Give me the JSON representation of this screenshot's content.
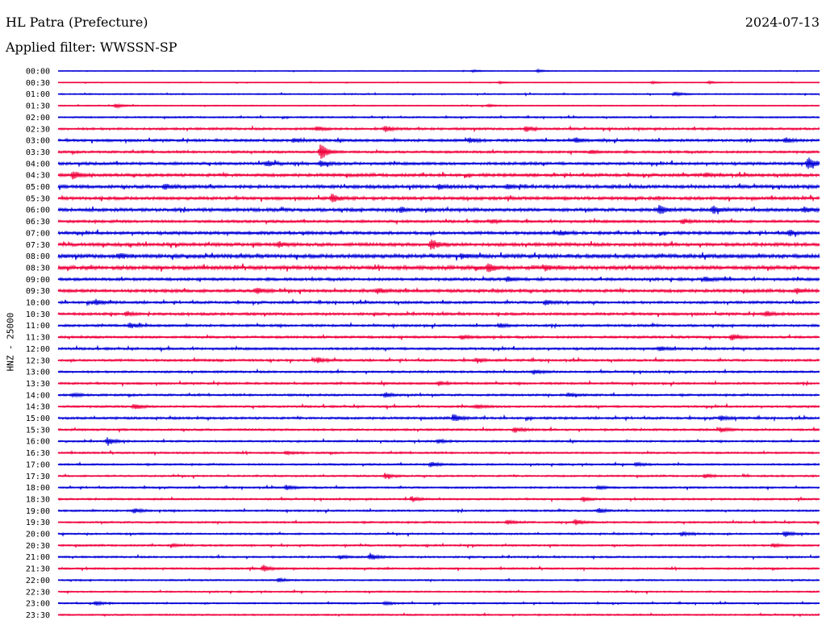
{
  "header": {
    "station": "HL Patra (Prefecture)",
    "date": "2024-07-13",
    "filter": "Applied filter: WWSSN-SP",
    "side_label": "HNZ - 25000"
  },
  "colors": {
    "trace_a": "#0000d8",
    "trace_b": "#f0003c"
  },
  "chart_data": {
    "type": "line",
    "title": "HL Patra (Prefecture)",
    "subtitle": "Applied filter: WWSSN-SP",
    "ylabel": "HNZ - 25000",
    "xlabel": "",
    "grid": false,
    "legend": "none",
    "rows": [
      "00:00",
      "00:30",
      "01:00",
      "01:30",
      "02:00",
      "02:30",
      "03:00",
      "03:30",
      "04:00",
      "04:30",
      "05:00",
      "05:30",
      "06:00",
      "06:30",
      "07:00",
      "07:30",
      "08:00",
      "08:30",
      "09:00",
      "09:30",
      "10:00",
      "10:30",
      "11:00",
      "11:30",
      "12:00",
      "12:30",
      "13:00",
      "13:30",
      "14:00",
      "14:30",
      "15:00",
      "15:30",
      "16:00",
      "16:30",
      "17:00",
      "17:30",
      "18:00",
      "18:30",
      "19:00",
      "19:30",
      "20:00",
      "20:30",
      "21:00",
      "21:30",
      "22:00",
      "22:30",
      "23:00",
      "23:30"
    ],
    "noise": [
      0.3,
      0.3,
      0.5,
      0.4,
      0.6,
      0.9,
      1.0,
      0.9,
      1.1,
      1.2,
      1.3,
      1.2,
      1.3,
      1.0,
      1.2,
      1.3,
      1.5,
      1.5,
      1.1,
      1.2,
      1.0,
      1.0,
      0.9,
      0.9,
      0.9,
      0.9,
      0.8,
      0.8,
      0.8,
      0.8,
      0.9,
      0.8,
      0.7,
      0.7,
      0.7,
      0.7,
      0.7,
      0.7,
      0.7,
      0.7,
      0.7,
      0.7,
      0.7,
      0.7,
      0.6,
      0.6,
      0.6,
      0.6
    ],
    "events": [
      {
        "row": 0,
        "t": 0.545,
        "amp": 1.5
      },
      {
        "row": 0,
        "t": 0.63,
        "amp": 1.5
      },
      {
        "row": 1,
        "t": 0.58,
        "amp": 1.3
      },
      {
        "row": 1,
        "t": 0.78,
        "amp": 1.4
      },
      {
        "row": 1,
        "t": 0.855,
        "amp": 1.4
      },
      {
        "row": 2,
        "t": 0.81,
        "amp": 2.5
      },
      {
        "row": 3,
        "t": 0.076,
        "amp": 2.5
      },
      {
        "row": 3,
        "t": 0.565,
        "amp": 1.4
      },
      {
        "row": 5,
        "t": 0.34,
        "amp": 2.5
      },
      {
        "row": 5,
        "t": 0.43,
        "amp": 4.0
      },
      {
        "row": 5,
        "t": 0.615,
        "amp": 3.5
      },
      {
        "row": 6,
        "t": 0.31,
        "amp": 2.5
      },
      {
        "row": 6,
        "t": 0.54,
        "amp": 3.0
      },
      {
        "row": 6,
        "t": 0.68,
        "amp": 3.5
      },
      {
        "row": 6,
        "t": 0.955,
        "amp": 3.0
      },
      {
        "row": 7,
        "t": 0.345,
        "amp": 11.0
      },
      {
        "row": 7,
        "t": 0.7,
        "amp": 2.0
      },
      {
        "row": 8,
        "t": 0.275,
        "amp": 4.0
      },
      {
        "row": 8,
        "t": 0.345,
        "amp": 3.0
      },
      {
        "row": 8,
        "t": 0.985,
        "amp": 8.0
      },
      {
        "row": 9,
        "t": 0.02,
        "amp": 5.0
      },
      {
        "row": 9,
        "t": 0.85,
        "amp": 2.5
      },
      {
        "row": 10,
        "t": 0.14,
        "amp": 3.0
      },
      {
        "row": 10,
        "t": 0.5,
        "amp": 3.0
      },
      {
        "row": 10,
        "t": 0.59,
        "amp": 3.0
      },
      {
        "row": 11,
        "t": 0.36,
        "amp": 5.0
      },
      {
        "row": 12,
        "t": 0.45,
        "amp": 3.0
      },
      {
        "row": 12,
        "t": 0.79,
        "amp": 5.5
      },
      {
        "row": 12,
        "t": 0.86,
        "amp": 4.5
      },
      {
        "row": 12,
        "t": 0.98,
        "amp": 3.5
      },
      {
        "row": 13,
        "t": 0.57,
        "amp": 2.5
      },
      {
        "row": 13,
        "t": 0.82,
        "amp": 3.0
      },
      {
        "row": 14,
        "t": 0.66,
        "amp": 2.5
      },
      {
        "row": 14,
        "t": 0.96,
        "amp": 3.5
      },
      {
        "row": 15,
        "t": 0.29,
        "amp": 3.0
      },
      {
        "row": 15,
        "t": 0.49,
        "amp": 6.5
      },
      {
        "row": 16,
        "t": 0.08,
        "amp": 3.0
      },
      {
        "row": 16,
        "t": 0.53,
        "amp": 2.5
      },
      {
        "row": 17,
        "t": 0.565,
        "amp": 5.0
      },
      {
        "row": 17,
        "t": 0.64,
        "amp": 3.0
      },
      {
        "row": 18,
        "t": 0.59,
        "amp": 3.0
      },
      {
        "row": 18,
        "t": 0.85,
        "amp": 3.0
      },
      {
        "row": 19,
        "t": 0.26,
        "amp": 3.5
      },
      {
        "row": 19,
        "t": 0.42,
        "amp": 3.0
      },
      {
        "row": 19,
        "t": 0.97,
        "amp": 3.0
      },
      {
        "row": 20,
        "t": 0.05,
        "amp": 3.5
      },
      {
        "row": 20,
        "t": 0.64,
        "amp": 3.0
      },
      {
        "row": 21,
        "t": 0.09,
        "amp": 3.0
      },
      {
        "row": 21,
        "t": 0.93,
        "amp": 3.0
      },
      {
        "row": 22,
        "t": 0.095,
        "amp": 3.5
      },
      {
        "row": 22,
        "t": 0.58,
        "amp": 2.5
      },
      {
        "row": 23,
        "t": 0.53,
        "amp": 2.5
      },
      {
        "row": 23,
        "t": 0.885,
        "amp": 4.5
      },
      {
        "row": 24,
        "t": 0.79,
        "amp": 2.5
      },
      {
        "row": 25,
        "t": 0.34,
        "amp": 3.5
      },
      {
        "row": 25,
        "t": 0.55,
        "amp": 2.5
      },
      {
        "row": 26,
        "t": 0.625,
        "amp": 3.0
      },
      {
        "row": 27,
        "t": 0.5,
        "amp": 2.5
      },
      {
        "row": 28,
        "t": 0.02,
        "amp": 2.5
      },
      {
        "row": 28,
        "t": 0.43,
        "amp": 3.0
      },
      {
        "row": 28,
        "t": 0.67,
        "amp": 2.5
      },
      {
        "row": 29,
        "t": 0.1,
        "amp": 3.5
      },
      {
        "row": 29,
        "t": 0.55,
        "amp": 2.5
      },
      {
        "row": 30,
        "t": 0.52,
        "amp": 5.0
      },
      {
        "row": 30,
        "t": 0.87,
        "amp": 3.0
      },
      {
        "row": 31,
        "t": 0.6,
        "amp": 3.5
      },
      {
        "row": 31,
        "t": 0.87,
        "amp": 3.0
      },
      {
        "row": 32,
        "t": 0.065,
        "amp": 5.0
      },
      {
        "row": 32,
        "t": 0.5,
        "amp": 2.5
      },
      {
        "row": 33,
        "t": 0.3,
        "amp": 2.0
      },
      {
        "row": 34,
        "t": 0.49,
        "amp": 3.5
      },
      {
        "row": 34,
        "t": 0.76,
        "amp": 2.5
      },
      {
        "row": 35,
        "t": 0.43,
        "amp": 3.0
      },
      {
        "row": 35,
        "t": 0.85,
        "amp": 2.5
      },
      {
        "row": 36,
        "t": 0.3,
        "amp": 3.0
      },
      {
        "row": 36,
        "t": 0.71,
        "amp": 2.5
      },
      {
        "row": 37,
        "t": 0.465,
        "amp": 3.0
      },
      {
        "row": 37,
        "t": 0.69,
        "amp": 2.5
      },
      {
        "row": 38,
        "t": 0.1,
        "amp": 3.0
      },
      {
        "row": 38,
        "t": 0.71,
        "amp": 3.0
      },
      {
        "row": 39,
        "t": 0.59,
        "amp": 2.5
      },
      {
        "row": 39,
        "t": 0.68,
        "amp": 3.5
      },
      {
        "row": 40,
        "t": 0.82,
        "amp": 2.5
      },
      {
        "row": 40,
        "t": 0.955,
        "amp": 3.5
      },
      {
        "row": 41,
        "t": 0.15,
        "amp": 2.0
      },
      {
        "row": 41,
        "t": 0.94,
        "amp": 2.5
      },
      {
        "row": 42,
        "t": 0.37,
        "amp": 2.5
      },
      {
        "row": 42,
        "t": 0.41,
        "amp": 4.5
      },
      {
        "row": 43,
        "t": 0.27,
        "amp": 4.0
      },
      {
        "row": 44,
        "t": 0.29,
        "amp": 2.5
      },
      {
        "row": 46,
        "t": 0.05,
        "amp": 2.5
      },
      {
        "row": 46,
        "t": 0.43,
        "amp": 2.0
      }
    ]
  }
}
